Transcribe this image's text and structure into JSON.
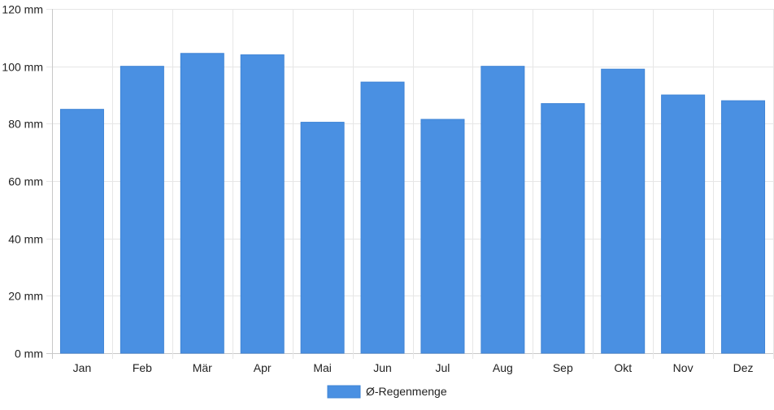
{
  "chart_data": {
    "type": "bar",
    "title": "",
    "xlabel": "",
    "ylabel": "",
    "categories": [
      "Jan",
      "Feb",
      "Mär",
      "Apr",
      "Mai",
      "Jun",
      "Jul",
      "Aug",
      "Sep",
      "Okt",
      "Nov",
      "Dez"
    ],
    "series": [
      {
        "name": "Ø-Regenmenge",
        "color": "#4a90e2",
        "values": [
          85,
          100,
          104.5,
          104,
          80.5,
          94.5,
          81.5,
          100,
          87,
          99,
          90,
          88
        ]
      }
    ],
    "ylim": [
      0,
      120
    ],
    "y_ticks": [
      {
        "value": 0,
        "label": "0 mm"
      },
      {
        "value": 20,
        "label": "20 mm"
      },
      {
        "value": 40,
        "label": "40 mm"
      },
      {
        "value": 60,
        "label": "60 mm"
      },
      {
        "value": 80,
        "label": "80 mm"
      },
      {
        "value": 100,
        "label": "100 mm"
      },
      {
        "value": 120,
        "label": "120 mm"
      }
    ],
    "grid": true,
    "legend_position": "bottom-center"
  }
}
